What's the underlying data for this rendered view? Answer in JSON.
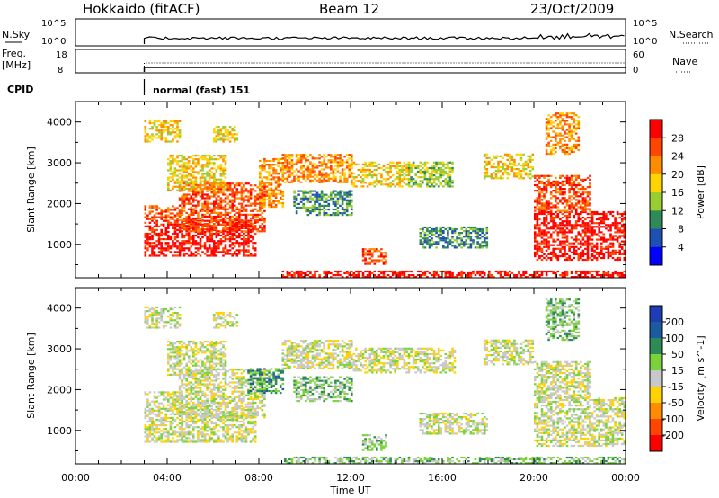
{
  "header": {
    "station": "Hokkaido (fitACF)",
    "beam": "Beam 12",
    "date": "23/Oct/2009"
  },
  "strips": {
    "nsky": {
      "label": "N.Sky",
      "tick_top": "10^5",
      "tick_bottom": "10^0"
    },
    "nsearch": {
      "label": "N.Search",
      "tick_top": "10^5",
      "tick_bottom": "10^0"
    },
    "freq": {
      "label_line1": "Freq.",
      "label_line2": "[MHz]",
      "tick_top": "18",
      "tick_bottom": "8"
    },
    "nave": {
      "label": "Nave",
      "tick_top": "60",
      "tick_bottom": "0"
    },
    "cpid": {
      "label": "CPID",
      "mode_text": "normal (fast) 151"
    }
  },
  "chart_data": [
    {
      "type": "heatmap",
      "name": "power",
      "ylabel": "Slant Range [km]",
      "xlabel": "Time UT",
      "x_ticks": [
        "00:00",
        "04:00",
        "08:00",
        "12:00",
        "16:00",
        "20:00",
        "00:00"
      ],
      "x_hours": [
        0,
        4,
        8,
        12,
        16,
        20,
        24
      ],
      "y_ticks": [
        1000,
        2000,
        3000,
        4000
      ],
      "ylim": [
        180,
        4500
      ],
      "xlim": [
        0,
        24
      ],
      "data_start_hour": 3,
      "colorbar": {
        "label": "Power [dB]",
        "tick_labels": [
          "28",
          "24",
          "20",
          "16",
          "12",
          "8",
          "4"
        ],
        "colors": [
          "#ff0000",
          "#ff4500",
          "#ff8c00",
          "#ffd200",
          "#9acd32",
          "#2e8b57",
          "#1e50b4",
          "#0000ff"
        ]
      },
      "regions": [
        {
          "t0": 3.0,
          "t1": 7.8,
          "r0": 700,
          "r1": 1600,
          "level": 0
        },
        {
          "t0": 3.0,
          "t1": 4.5,
          "r0": 1600,
          "r1": 1950,
          "level": 1
        },
        {
          "t0": 4.5,
          "t1": 8.2,
          "r0": 1300,
          "r1": 2500,
          "level": 1
        },
        {
          "t0": 4.0,
          "t1": 6.5,
          "r0": 2300,
          "r1": 3200,
          "level": 3
        },
        {
          "t0": 3.0,
          "t1": 4.5,
          "r0": 3500,
          "r1": 4000,
          "level": 3
        },
        {
          "t0": 6.0,
          "t1": 7.0,
          "r0": 3500,
          "r1": 3900,
          "level": 3
        },
        {
          "t0": 8.0,
          "t1": 9.0,
          "r0": 1900,
          "r1": 3100,
          "level": 2
        },
        {
          "t0": 9.0,
          "t1": 12.0,
          "r0": 2500,
          "r1": 3200,
          "level": 2
        },
        {
          "t0": 9.5,
          "t1": 12.0,
          "r0": 1700,
          "r1": 2300,
          "level": 5
        },
        {
          "t0": 12.0,
          "t1": 14.5,
          "r0": 2400,
          "r1": 3000,
          "level": 3
        },
        {
          "t0": 14.5,
          "t1": 16.5,
          "r0": 2400,
          "r1": 3000,
          "level": 4
        },
        {
          "t0": 15.0,
          "t1": 18.0,
          "r0": 900,
          "r1": 1400,
          "level": 5
        },
        {
          "t0": 12.5,
          "t1": 13.5,
          "r0": 500,
          "r1": 900,
          "level": 1
        },
        {
          "t0": 17.8,
          "t1": 20.0,
          "r0": 2600,
          "r1": 3200,
          "level": 3
        },
        {
          "t0": 20.0,
          "t1": 24.0,
          "r0": 600,
          "r1": 1800,
          "level": 0
        },
        {
          "t0": 20.0,
          "t1": 22.5,
          "r0": 1800,
          "r1": 2700,
          "level": 1
        },
        {
          "t0": 20.5,
          "t1": 22.0,
          "r0": 3200,
          "r1": 4200,
          "level": 2
        },
        {
          "t0": 9.0,
          "t1": 24.0,
          "r0": 180,
          "r1": 350,
          "level": 0
        }
      ]
    },
    {
      "type": "heatmap",
      "name": "velocity",
      "ylabel": "Slant Range [km]",
      "xlabel": "Time UT",
      "x_ticks": [
        "00:00",
        "04:00",
        "08:00",
        "12:00",
        "16:00",
        "20:00",
        "00:00"
      ],
      "x_hours": [
        0,
        4,
        8,
        12,
        16,
        20,
        24
      ],
      "y_ticks": [
        1000,
        2000,
        3000,
        4000
      ],
      "ylim": [
        180,
        4500
      ],
      "xlim": [
        0,
        24
      ],
      "data_start_hour": 3,
      "colorbar": {
        "label": "Velocity [m s^-1]",
        "tick_labels": [
          "200",
          "100",
          "50",
          "15",
          "-15",
          "-50",
          "-100",
          "-200"
        ],
        "colors": [
          "#1e3cb4",
          "#1e5aa0",
          "#2e8b57",
          "#7cd23c",
          "#c8c8c8",
          "#ffd200",
          "#ff8c00",
          "#ff4500",
          "#ff0000"
        ]
      },
      "regions": [
        {
          "t0": 3.0,
          "t1": 7.8,
          "r0": 700,
          "r1": 1600,
          "level": 4
        },
        {
          "t0": 3.0,
          "t1": 4.5,
          "r0": 1600,
          "r1": 1950,
          "level": 4
        },
        {
          "t0": 4.5,
          "t1": 8.2,
          "r0": 1300,
          "r1": 2500,
          "level": 4
        },
        {
          "t0": 4.0,
          "t1": 6.5,
          "r0": 2300,
          "r1": 3200,
          "level": 4
        },
        {
          "t0": 3.0,
          "t1": 4.5,
          "r0": 3500,
          "r1": 4000,
          "level": 4
        },
        {
          "t0": 6.0,
          "t1": 7.0,
          "r0": 3500,
          "r1": 3900,
          "level": 4
        },
        {
          "t0": 7.5,
          "t1": 9.0,
          "r0": 1900,
          "r1": 2500,
          "level": 2
        },
        {
          "t0": 9.0,
          "t1": 12.0,
          "r0": 2500,
          "r1": 3200,
          "level": 4
        },
        {
          "t0": 9.5,
          "t1": 12.0,
          "r0": 1700,
          "r1": 2300,
          "level": 3
        },
        {
          "t0": 12.0,
          "t1": 16.5,
          "r0": 2400,
          "r1": 3000,
          "level": 4
        },
        {
          "t0": 15.0,
          "t1": 18.0,
          "r0": 900,
          "r1": 1400,
          "level": 4
        },
        {
          "t0": 12.5,
          "t1": 13.5,
          "r0": 500,
          "r1": 900,
          "level": 3
        },
        {
          "t0": 17.8,
          "t1": 20.0,
          "r0": 2600,
          "r1": 3200,
          "level": 4
        },
        {
          "t0": 20.0,
          "t1": 24.0,
          "r0": 600,
          "r1": 1800,
          "level": 4
        },
        {
          "t0": 20.0,
          "t1": 22.5,
          "r0": 1800,
          "r1": 2700,
          "level": 4
        },
        {
          "t0": 20.5,
          "t1": 22.0,
          "r0": 3200,
          "r1": 4200,
          "level": 3
        },
        {
          "t0": 9.0,
          "t1": 24.0,
          "r0": 180,
          "r1": 350,
          "level": 3
        }
      ]
    }
  ]
}
